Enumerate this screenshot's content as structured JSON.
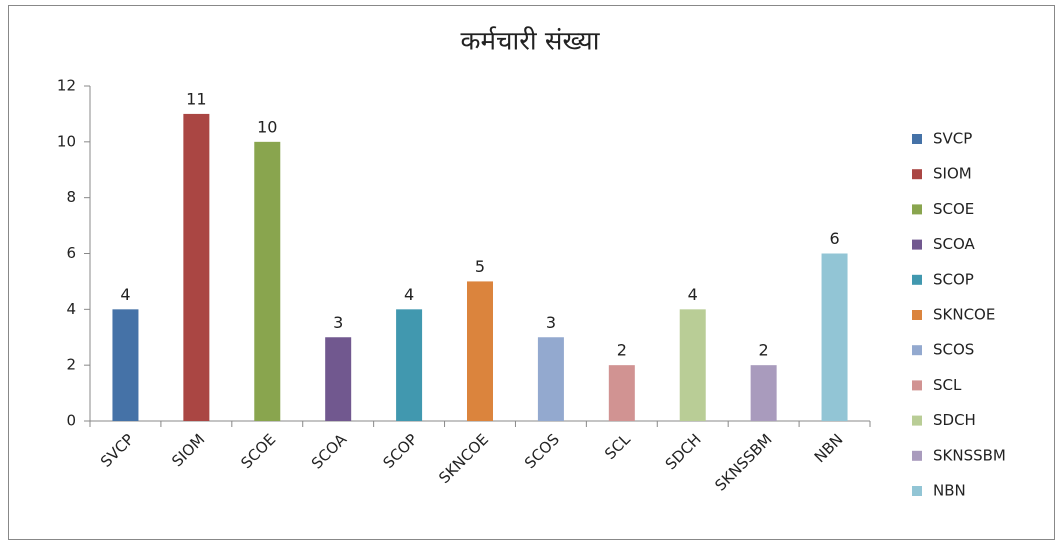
{
  "chart_data": {
    "type": "bar",
    "title": "कर्मचारी संख्या",
    "categories": [
      "SVCP",
      "SIOM",
      "SCOE",
      "SCOA",
      "SCOP",
      "SKNCOE",
      "SCOS",
      "SCL",
      "SDCH",
      "SKNSSBM",
      "NBN"
    ],
    "values": [
      4,
      11,
      10,
      3,
      4,
      5,
      3,
      2,
      4,
      2,
      6
    ],
    "colors": [
      "#4572a7",
      "#aa4643",
      "#89a54e",
      "#71588f",
      "#4198af",
      "#db843d",
      "#93a9cf",
      "#d19392",
      "#b9cd96",
      "#a99bbd",
      "#92c5d5"
    ],
    "ylim": [
      0,
      12
    ],
    "yticks": [
      0,
      2,
      4,
      6,
      8,
      10,
      12
    ],
    "grid": false,
    "legend": "right"
  }
}
